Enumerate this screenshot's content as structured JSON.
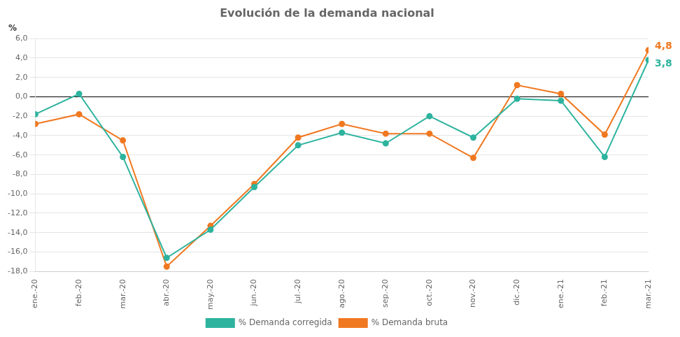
{
  "chart_data": {
    "type": "line",
    "title": "Evolución de la demanda nacional",
    "y_label": "%",
    "categories": [
      "ene.-20",
      "feb.-20",
      "mar.-20",
      "abr.-20",
      "may.-20",
      "jun.-20",
      "jul.-20",
      "ago.-20",
      "sep.-20",
      "oct.-20",
      "nov.-20",
      "dic.-20",
      "ene.-21",
      "feb.-21",
      "mar.-21"
    ],
    "series": [
      {
        "name": "% Demanda corregida",
        "color": "#2db39e",
        "marker": "circle",
        "values": [
          -1.8,
          0.3,
          -6.2,
          -16.6,
          -13.7,
          -9.3,
          -5.0,
          -3.7,
          -4.8,
          -2.0,
          -4.2,
          -0.2,
          -0.4,
          -6.2,
          3.8
        ]
      },
      {
        "name": "% Demanda bruta",
        "color": "#f07820",
        "marker": "circle",
        "values": [
          -2.8,
          -1.8,
          -4.5,
          -17.5,
          -13.3,
          -9.0,
          -4.2,
          -2.8,
          -3.8,
          -3.8,
          -6.3,
          1.2,
          0.3,
          -3.9,
          4.8
        ]
      }
    ],
    "annotations": [
      {
        "text": "4,8",
        "series": "% Demanda bruta",
        "category": "mar.-21",
        "value": 4.8
      },
      {
        "text": "3,8",
        "series": "% Demanda corregida",
        "category": "mar.-21",
        "value": 3.8
      }
    ],
    "ylim": [
      -18.0,
      6.0
    ],
    "yticks": [
      {
        "value": -18.0,
        "label": "-18,0"
      },
      {
        "value": -16.0,
        "label": "-16,0"
      },
      {
        "value": -14.0,
        "label": "-14,0"
      },
      {
        "value": -12.0,
        "label": "-12,0"
      },
      {
        "value": -10.0,
        "label": "-10,0"
      },
      {
        "value": -8.0,
        "label": "-8,0"
      },
      {
        "value": -6.0,
        "label": "-6,0"
      },
      {
        "value": -4.0,
        "label": "-4,0"
      },
      {
        "value": -2.0,
        "label": "-2,0"
      },
      {
        "value": 0.0,
        "label": "0,0"
      },
      {
        "value": 2.0,
        "label": "2,0"
      },
      {
        "value": 4.0,
        "label": "4,0"
      },
      {
        "value": 6.0,
        "label": "6,0"
      }
    ],
    "grid": true,
    "legend": "bottom"
  }
}
